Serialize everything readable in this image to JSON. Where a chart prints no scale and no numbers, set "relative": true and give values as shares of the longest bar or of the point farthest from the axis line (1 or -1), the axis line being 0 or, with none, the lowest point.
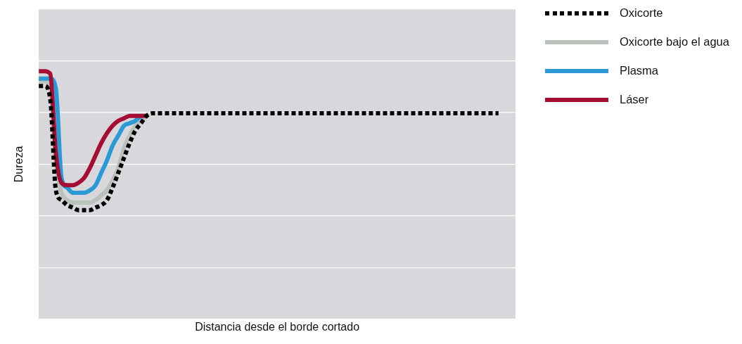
{
  "chart_data": {
    "type": "line",
    "relative": true,
    "xlabel": "Distancia desde el borde cortado",
    "ylabel": "Dureza",
    "legend": "right",
    "grid": "y",
    "categories": [
      null,
      null,
      null,
      null,
      null,
      null,
      null,
      null,
      null,
      null,
      null,
      null,
      null,
      null,
      null,
      null,
      null,
      null,
      null,
      null,
      null,
      null,
      null,
      null,
      null,
      null,
      null,
      null,
      null,
      null,
      null,
      null,
      null,
      null,
      null,
      null,
      null,
      null,
      null,
      null,
      null,
      null,
      null,
      null,
      null,
      null,
      null,
      null,
      null,
      null,
      null,
      null,
      null,
      null,
      null,
      null,
      null,
      null,
      null,
      null,
      null,
      null,
      null,
      null,
      null,
      null,
      null,
      null,
      null,
      null,
      null,
      null,
      null,
      null,
      null,
      null,
      null,
      null,
      null,
      null,
      null,
      null,
      null,
      null,
      null
    ],
    "series": [
      {
        "name": "Oxicorte",
        "color": "#000000",
        "line_style": "dotted",
        "values": [
          0.94,
          0.94,
          0.89,
          0.52,
          0.48,
          0.46,
          0.45,
          0.44,
          0.44,
          0.44,
          0.45,
          0.46,
          0.48,
          0.53,
          0.59,
          0.65,
          0.71,
          0.76,
          0.79,
          0.82,
          0.83,
          0.83,
          0.83,
          0.83,
          0.83,
          0.83,
          0.83,
          0.83,
          0.83,
          0.83,
          0.83,
          0.83,
          0.83,
          0.83,
          0.83,
          0.83,
          0.83,
          0.83,
          0.83,
          0.83,
          0.83,
          0.83,
          0.83,
          0.83,
          0.83,
          0.83,
          0.83,
          0.83,
          0.83,
          0.83,
          0.83,
          0.83,
          0.83,
          0.83,
          0.83,
          0.83,
          0.83,
          0.83,
          0.83,
          0.83,
          0.83,
          0.83,
          0.83,
          0.83,
          0.83,
          0.83,
          0.83,
          0.83,
          0.83,
          0.83,
          0.83,
          0.83,
          0.83,
          0.83,
          0.83,
          0.83,
          0.83,
          0.83,
          0.83,
          0.83,
          0.83,
          0.83,
          null,
          null,
          null
        ]
      },
      {
        "name": "Oxicorte bajo el agua",
        "color": "#b8c2bb",
        "line_style": "solid",
        "values": [
          0.96,
          0.96,
          0.94,
          0.63,
          0.51,
          0.48,
          0.47,
          0.47,
          0.47,
          0.47,
          0.48,
          0.5,
          0.52,
          0.56,
          0.61,
          0.69,
          0.74,
          0.78,
          0.8,
          0.82,
          null,
          null,
          null,
          null,
          null,
          null,
          null,
          null,
          null,
          null,
          null,
          null,
          null,
          null,
          null,
          null,
          null,
          null,
          null,
          null,
          null,
          null,
          null,
          null,
          null,
          null,
          null,
          null,
          null,
          null,
          null,
          null,
          null,
          null,
          null,
          null,
          null,
          null,
          null,
          null,
          null,
          null,
          null,
          null,
          null,
          null,
          null,
          null,
          null,
          null,
          null,
          null,
          null,
          null,
          null,
          null,
          null,
          null,
          null,
          null,
          null,
          null,
          null,
          null,
          null
        ]
      },
      {
        "name": "Plasma",
        "color": "#2a9ad6",
        "line_style": "solid",
        "values": [
          0.97,
          0.97,
          0.97,
          0.93,
          0.57,
          0.53,
          0.51,
          0.51,
          0.51,
          0.52,
          0.54,
          0.59,
          0.64,
          0.7,
          0.74,
          0.78,
          0.79,
          0.8,
          0.82,
          null,
          null,
          null,
          null,
          null,
          null,
          null,
          null,
          null,
          null,
          null,
          null,
          null,
          null,
          null,
          null,
          null,
          null,
          null,
          null,
          null,
          null,
          null,
          null,
          null,
          null,
          null,
          null,
          null,
          null,
          null,
          null,
          null,
          null,
          null,
          null,
          null,
          null,
          null,
          null,
          null,
          null,
          null,
          null,
          null,
          null,
          null,
          null,
          null,
          null,
          null,
          null,
          null,
          null,
          null,
          null,
          null,
          null,
          null,
          null,
          null,
          null,
          null,
          null,
          null,
          null
        ]
      },
      {
        "name": "Láser",
        "color": "#a50d33",
        "line_style": "solid",
        "values": [
          1,
          1,
          0.99,
          0.67,
          0.55,
          0.54,
          0.54,
          0.55,
          0.57,
          0.61,
          0.66,
          0.71,
          0.75,
          0.78,
          0.8,
          0.81,
          0.82,
          0.82,
          0.82,
          0.82,
          null,
          null,
          null,
          null,
          null,
          null,
          null,
          null,
          null,
          null,
          null,
          null,
          null,
          null,
          null,
          null,
          null,
          null,
          null,
          null,
          null,
          null,
          null,
          null,
          null,
          null,
          null,
          null,
          null,
          null,
          null,
          null,
          null,
          null,
          null,
          null,
          null,
          null,
          null,
          null,
          null,
          null,
          null,
          null,
          null,
          null,
          null,
          null,
          null,
          null,
          null,
          null,
          null,
          null,
          null,
          null,
          null,
          null,
          null,
          null,
          null,
          null,
          null,
          null,
          null
        ]
      }
    ]
  }
}
